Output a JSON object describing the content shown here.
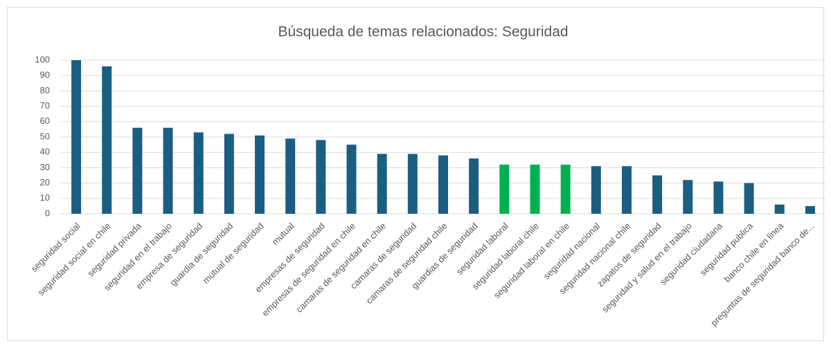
{
  "chart_data": {
    "type": "bar",
    "title": "Búsqueda de temas relacionados: Seguridad",
    "categories": [
      "seguridad social",
      "seguridad social en chile",
      "seguridad privada",
      "seguridad en el trabajo",
      "empresa de seguridad",
      "guardia de seguridad",
      "mutual de seguridad",
      "mutual",
      "empresas de seguridad",
      "empresas de seguridad en chile",
      "camaras de seguridad en chile",
      "camaras de seguridad",
      "camaras de seguridad chile",
      "guardias de seguridad",
      "seguridad laboral",
      "seguridad laboral chile",
      "seguridad laboral en chile",
      "seguridad nacional",
      "seguridad nacional chile",
      "zapatos de seguridad",
      "seguridad y salud en el trabajo",
      "seguridad ciudadana",
      "seguridad publica",
      "banco chile en linea",
      "preguntas de seguridad banco de..."
    ],
    "values": [
      100,
      96,
      56,
      56,
      53,
      52,
      51,
      49,
      48,
      45,
      39,
      39,
      38,
      36,
      32,
      32,
      32,
      31,
      31,
      25,
      22,
      21,
      20,
      6,
      5
    ],
    "colors": [
      "#1b5e82",
      "#1b5e82",
      "#1b5e82",
      "#1b5e82",
      "#1b5e82",
      "#1b5e82",
      "#1b5e82",
      "#1b5e82",
      "#1b5e82",
      "#1b5e82",
      "#1b5e82",
      "#1b5e82",
      "#1b5e82",
      "#1b5e82",
      "#00b050",
      "#00b050",
      "#00b050",
      "#1b5e82",
      "#1b5e82",
      "#1b5e82",
      "#1b5e82",
      "#1b5e82",
      "#1b5e82",
      "#1b5e82",
      "#1b5e82"
    ],
    "ylim": [
      0,
      100
    ],
    "yticks": [
      0,
      10,
      20,
      30,
      40,
      50,
      60,
      70,
      80,
      90,
      100
    ],
    "grid": true
  }
}
